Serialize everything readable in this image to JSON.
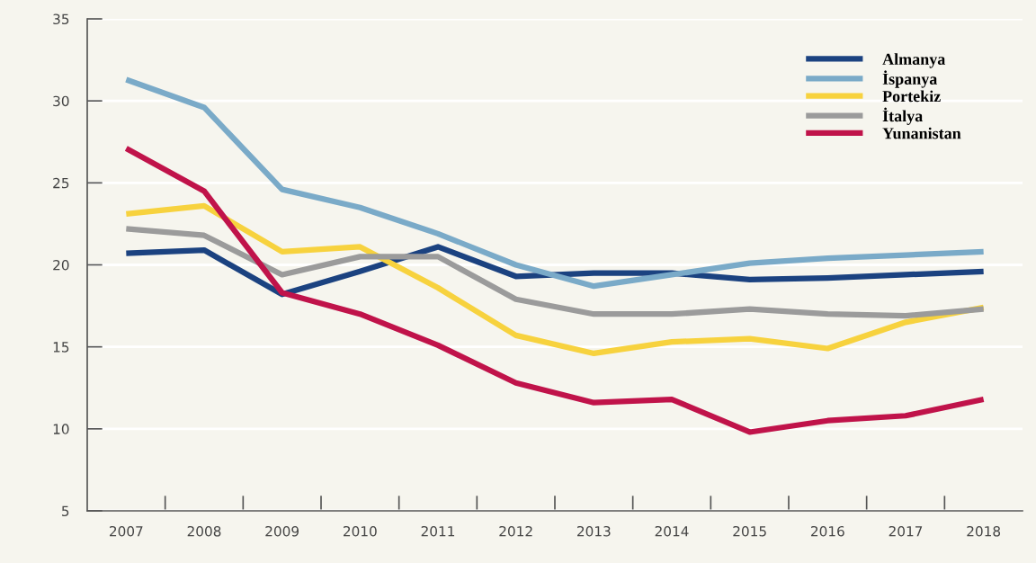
{
  "chart_data": {
    "type": "line",
    "categories": [
      "2007",
      "2008",
      "2009",
      "2010",
      "2011",
      "2012",
      "2013",
      "2014",
      "2015",
      "2016",
      "2017",
      "2018"
    ],
    "series": [
      {
        "name": "Almanya",
        "color": "#1b4280",
        "values": [
          20.7,
          20.9,
          18.2,
          19.6,
          21.1,
          19.3,
          19.5,
          19.5,
          19.1,
          19.2,
          19.4,
          19.6
        ]
      },
      {
        "name": "İspanya",
        "color": "#7aaac8",
        "values": [
          31.3,
          29.6,
          24.6,
          23.5,
          21.9,
          20.0,
          18.7,
          19.4,
          20.1,
          20.4,
          20.6,
          20.8
        ]
      },
      {
        "name": "Portekiz",
        "color": "#f7d23e",
        "values": [
          23.1,
          23.6,
          20.8,
          21.1,
          18.6,
          15.7,
          14.6,
          15.3,
          15.5,
          14.9,
          16.5,
          17.4
        ]
      },
      {
        "name": "İtalya",
        "color": "#9b9b9b",
        "values": [
          22.2,
          21.8,
          19.4,
          20.5,
          20.5,
          17.9,
          17.0,
          17.0,
          17.3,
          17.0,
          16.9,
          17.3
        ]
      },
      {
        "name": "Yunanistan",
        "color": "#c0134a",
        "values": [
          27.1,
          24.5,
          18.3,
          17.0,
          15.1,
          12.8,
          11.6,
          11.8,
          9.8,
          10.5,
          10.8,
          11.8
        ]
      }
    ],
    "ylim": [
      5,
      35
    ],
    "yticks": [
      5,
      10,
      15,
      20,
      25,
      30,
      35
    ],
    "grid": "y",
    "legend": "top right",
    "marker": "none",
    "line_style": "solid"
  }
}
